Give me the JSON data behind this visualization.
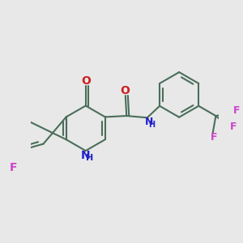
{
  "bg_color": "#e8e8e8",
  "bond_color": "#4a6e5a",
  "N_color": "#2222cc",
  "O_color": "#cc2020",
  "F_color": "#cc44cc",
  "lw": 1.5,
  "figsize": [
    3.0,
    3.0
  ],
  "dpi": 100,
  "xlim": [
    0.04,
    0.96
  ],
  "ylim": [
    0.25,
    0.82
  ]
}
